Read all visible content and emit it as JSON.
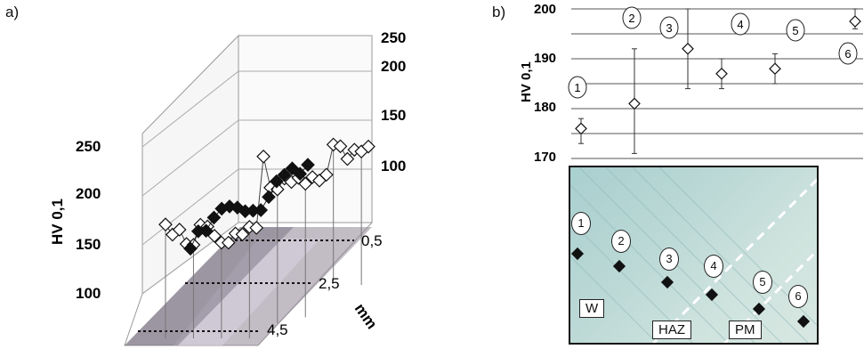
{
  "panel_labels": {
    "a": "a)",
    "b": "b)"
  },
  "panel_a": {
    "ylabel": "HV 0,1",
    "left_ticks": [
      "250",
      "200",
      "150",
      "100"
    ],
    "right_ticks": [
      "250",
      "200",
      "150",
      "100"
    ],
    "depth_ticks": [
      "0,5",
      "2,5",
      "4,5"
    ],
    "depth_unit": "mm"
  },
  "panel_b": {
    "ylabel": "HV 0,1",
    "ticks": [
      "200",
      "190",
      "180",
      "170"
    ]
  },
  "micrograph": {
    "labels": {
      "w": "W",
      "haz": "HAZ",
      "pm": "PM"
    },
    "indent_numbers": [
      "1",
      "2",
      "3",
      "4",
      "5",
      "6"
    ]
  },
  "chart_data": [
    {
      "type": "scatter",
      "view": "3d",
      "ylabel": "HV 0,1",
      "zlabel": "mm",
      "ylim": [
        75,
        250
      ],
      "depth_ticks": [
        0.5,
        2.5,
        4.5
      ],
      "series": [
        {
          "values": [
            200,
            185,
            188,
            168,
            164,
            185,
            180,
            166,
            155,
            152,
            160,
            156,
            162,
            158,
            240,
            200,
            195,
            205,
            198,
            200,
            190,
            195,
            188,
            192,
            225,
            220,
            202,
            210,
            205,
            208
          ]
        },
        {
          "values": [
            150,
            165,
            160,
            170,
            175,
            172,
            165,
            155,
            150,
            145,
            155,
            168,
            170,
            172,
            160,
            165
          ]
        }
      ]
    },
    {
      "type": "scatter",
      "ylabel": "HV 0,1",
      "ylim": [
        170,
        200
      ],
      "x": [
        1,
        2,
        3,
        4,
        5,
        6
      ],
      "values": [
        176,
        181,
        192,
        187,
        188,
        197.5
      ],
      "error_low": [
        173,
        171,
        184,
        184,
        185,
        196
      ],
      "error_high": [
        178,
        192,
        200,
        190,
        191,
        200
      ]
    }
  ]
}
